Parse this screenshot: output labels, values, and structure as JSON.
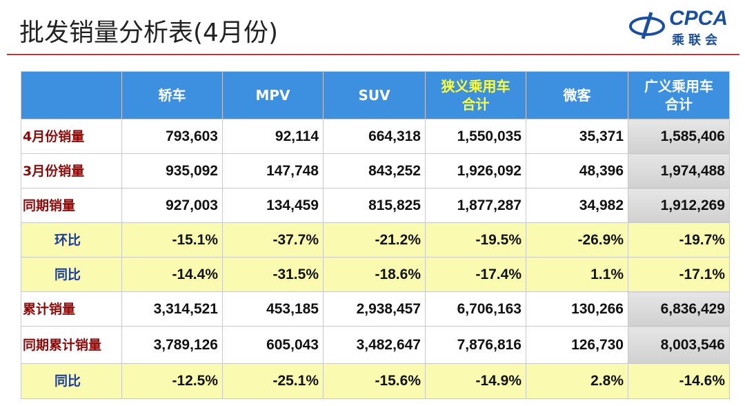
{
  "header": {
    "title": "批发销量分析表(4月份)",
    "logo": {
      "main": "CPCA",
      "sub": "乘联会"
    }
  },
  "table": {
    "columns": [
      "轿车",
      "MPV",
      "SUV",
      [
        "狭义乘用车",
        "合计"
      ],
      "微客",
      [
        "广义乘用车",
        "合计"
      ]
    ],
    "rows": [
      {
        "label": "4月份销量",
        "cells": [
          "793,603",
          "92,114",
          "664,318",
          "1,550,035",
          "35,371",
          "1,585,406"
        ]
      },
      {
        "label": "3月份销量",
        "cells": [
          "935,092",
          "147,748",
          "843,252",
          "1,926,092",
          "48,396",
          "1,974,488"
        ]
      },
      {
        "label": "同期销量",
        "cells": [
          "927,003",
          "134,459",
          "815,825",
          "1,877,287",
          "34,982",
          "1,912,269"
        ]
      },
      {
        "label": "环比",
        "cells": [
          "-15.1%",
          "-37.7%",
          "-21.2%",
          "-19.5%",
          "-26.9%",
          "-19.7%"
        ]
      },
      {
        "label": "同比",
        "cells": [
          "-14.4%",
          "-31.5%",
          "-18.6%",
          "-17.4%",
          "1.1%",
          "-17.1%"
        ]
      },
      {
        "label": "累计销量",
        "cells": [
          "3,314,521",
          "453,185",
          "2,938,457",
          "6,706,163",
          "130,266",
          "6,836,429"
        ]
      },
      {
        "label": "同期累计销量",
        "cells": [
          "3,789,126",
          "605,043",
          "3,482,647",
          "7,876,816",
          "126,730",
          "8,003,546"
        ]
      },
      {
        "label": "同比",
        "cells": [
          "-12.5%",
          "-25.1%",
          "-15.6%",
          "-14.9%",
          "2.8%",
          "-14.6%"
        ]
      }
    ]
  }
}
